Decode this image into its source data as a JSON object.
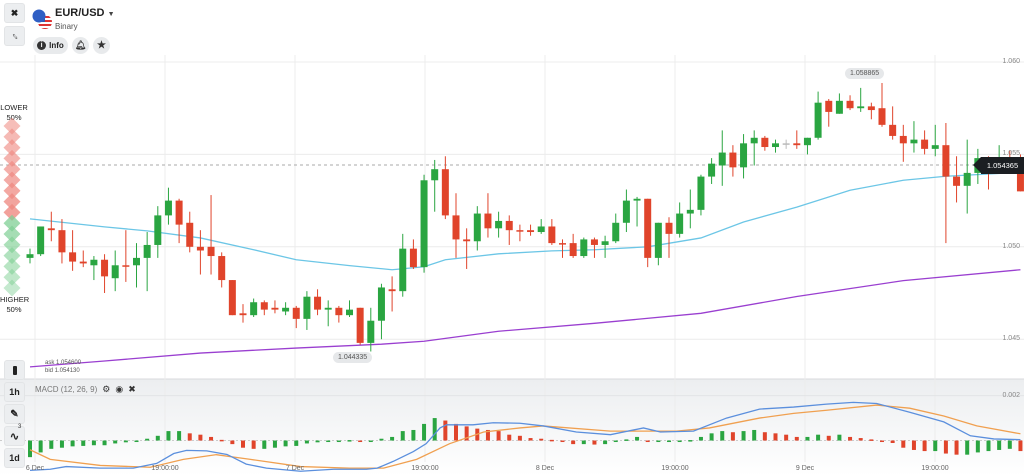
{
  "header": {
    "asset": "EUR/USD",
    "asset_type": "Binary",
    "info_label": "Info",
    "icons": {
      "close": "close-icon",
      "compress": "compress-icon",
      "flag": "us-flag-icon",
      "dropdown": "chevron-down-icon",
      "info": "info-icon",
      "bell": "bell-icon",
      "star": "star-icon"
    }
  },
  "sentiment": {
    "lower_label": "LOWER",
    "lower_pct": "50%",
    "higher_label": "HIGHER",
    "higher_pct": "50%",
    "lower_color": "#ee8880",
    "higher_color": "#7fcf94"
  },
  "toolbar": {
    "timeframe": "1h",
    "period": "1d",
    "indicator_count": "3",
    "icons": [
      "candles-icon",
      "pencil-icon",
      "indicator-icon"
    ]
  },
  "quote": {
    "ask": "ask 1.054600",
    "bid": "bid 1.054130",
    "current_price": "1.054365"
  },
  "annotations": {
    "high_label": "1.058865",
    "low_label": "1.044335"
  },
  "macd_header": {
    "label": "MACD (12, 26, 9)",
    "icons": [
      "gear-icon",
      "eye-icon",
      "close-icon"
    ]
  },
  "colors": {
    "up": "#2aa541",
    "down": "#e0442b",
    "doji": "#bbbbbb",
    "ma_fast": "#6cc6e6",
    "ma_slow": "#9a3fd0",
    "macd": "#5b8fdd",
    "signal": "#f0a050",
    "price_tag": "#1b1e22"
  },
  "chart_data": [
    {
      "type": "candlestick",
      "y_ticks": [
        "1.060",
        "1.055",
        "1.050",
        "1.045"
      ],
      "y_tick_values": [
        1.06,
        1.055,
        1.05,
        1.045
      ],
      "ylim": [
        1.0429,
        1.06038
      ],
      "x_ticks": [
        "6 Dec",
        "19:00:00",
        "7 Dec",
        "19:00:00",
        "8 Dec",
        "19:00:00",
        "9 Dec",
        "19:00:00"
      ],
      "grid": true,
      "candles": [
        [
          1.0494,
          1.0499,
          1.0491,
          1.0496
        ],
        [
          1.0496,
          1.0511,
          1.0495,
          1.0511
        ],
        [
          1.051,
          1.0519,
          1.0503,
          1.0509
        ],
        [
          1.0509,
          1.0515,
          1.0491,
          1.0497
        ],
        [
          1.0497,
          1.0509,
          1.0487,
          1.0492
        ],
        [
          1.0492,
          1.0498,
          1.0489,
          1.0491
        ],
        [
          1.049,
          1.0495,
          1.0482,
          1.0493
        ],
        [
          1.0493,
          1.0496,
          1.0475,
          1.0484
        ],
        [
          1.0483,
          1.0498,
          1.0476,
          1.049
        ],
        [
          1.049,
          1.0509,
          1.0481,
          1.04899
        ],
        [
          1.049,
          1.0502,
          1.0478,
          1.0494
        ],
        [
          1.0494,
          1.0508,
          1.0476,
          1.0501
        ],
        [
          1.0501,
          1.0522,
          1.0494,
          1.0517
        ],
        [
          1.0517,
          1.0532,
          1.0512,
          1.0525
        ],
        [
          1.0525,
          1.0526,
          1.0502,
          1.0512
        ],
        [
          1.0513,
          1.0519,
          1.0497,
          1.05
        ],
        [
          1.05,
          1.0509,
          1.0485,
          1.0498
        ],
        [
          1.05,
          1.0528,
          1.0485,
          1.0495
        ],
        [
          1.0495,
          1.0497,
          1.0478,
          1.0482
        ],
        [
          1.0482,
          1.0482,
          1.0463,
          1.0463
        ],
        [
          1.0464,
          1.0469,
          1.0459,
          1.0463
        ],
        [
          1.0463,
          1.0472,
          1.0462,
          1.047
        ],
        [
          1.047,
          1.0471,
          1.0463,
          1.0466
        ],
        [
          1.0467,
          1.0471,
          1.0464,
          1.0466
        ],
        [
          1.0465,
          1.047,
          1.0463,
          1.0467
        ],
        [
          1.0467,
          1.0468,
          1.0456,
          1.0461
        ],
        [
          1.0461,
          1.0476,
          1.0455,
          1.0473
        ],
        [
          1.0473,
          1.0477,
          1.0463,
          1.0466
        ],
        [
          1.0466,
          1.0471,
          1.0457,
          1.0467
        ],
        [
          1.0467,
          1.0468,
          1.0459,
          1.0463
        ],
        [
          1.0463,
          1.0471,
          1.0462,
          1.0466
        ],
        [
          1.0467,
          1.0467,
          1.0447,
          1.0448
        ],
        [
          1.0448,
          1.0467,
          1.044335,
          1.046
        ],
        [
          1.046,
          1.048,
          1.045,
          1.0478
        ],
        [
          1.0477,
          1.0484,
          1.0465,
          1.0476
        ],
        [
          1.0476,
          1.0507,
          1.0473,
          1.0499
        ],
        [
          1.0499,
          1.0504,
          1.0488,
          1.0489
        ],
        [
          1.0489,
          1.0539,
          1.0486,
          1.0536
        ],
        [
          1.0536,
          1.0547,
          1.0519,
          1.0542
        ],
        [
          1.0542,
          1.0549,
          1.0515,
          1.0517
        ],
        [
          1.0517,
          1.0529,
          1.0494,
          1.0504
        ],
        [
          1.0504,
          1.051,
          1.0488,
          1.0503
        ],
        [
          1.0503,
          1.0522,
          1.0498,
          1.0518
        ],
        [
          1.0518,
          1.0529,
          1.0505,
          1.051
        ],
        [
          1.051,
          1.0519,
          1.0505,
          1.0514
        ],
        [
          1.0514,
          1.0517,
          1.0501,
          1.0509
        ],
        [
          1.0509,
          1.0512,
          1.0503,
          1.05089
        ],
        [
          1.0509,
          1.0512,
          1.0506,
          1.0508
        ],
        [
          1.0508,
          1.0515,
          1.0507,
          1.0511
        ],
        [
          1.0511,
          1.0515,
          1.0501,
          1.0502
        ],
        [
          1.0502,
          1.0504,
          1.0494,
          1.05019
        ],
        [
          1.0502,
          1.0507,
          1.0494,
          1.0495
        ],
        [
          1.0495,
          1.0505,
          1.0494,
          1.0504
        ],
        [
          1.0504,
          1.0505,
          1.0494,
          1.0501
        ],
        [
          1.0501,
          1.0506,
          1.0494,
          1.0503
        ],
        [
          1.0503,
          1.0518,
          1.0502,
          1.0513
        ],
        [
          1.0513,
          1.0531,
          1.0508,
          1.0525
        ],
        [
          1.0525,
          1.0527,
          1.0511,
          1.0526
        ],
        [
          1.0526,
          1.0526,
          1.0489,
          1.0494
        ],
        [
          1.0494,
          1.0513,
          1.049,
          1.0513
        ],
        [
          1.0513,
          1.0516,
          1.0494,
          1.0507
        ],
        [
          1.0507,
          1.0524,
          1.0505,
          1.0518
        ],
        [
          1.0518,
          1.0531,
          1.051,
          1.052
        ],
        [
          1.052,
          1.0539,
          1.0517,
          1.0538
        ],
        [
          1.0538,
          1.0548,
          1.0534,
          1.0545
        ],
        [
          1.0544,
          1.0563,
          1.0533,
          1.0551
        ],
        [
          1.0551,
          1.0555,
          1.0538,
          1.0543
        ],
        [
          1.0543,
          1.0561,
          1.0537,
          1.0556
        ],
        [
          1.0556,
          1.0563,
          1.0544,
          1.0559
        ],
        [
          1.0559,
          1.056,
          1.0552,
          1.0554
        ],
        [
          1.0554,
          1.0558,
          1.0551,
          1.0556
        ],
        [
          1.0556,
          1.0558,
          1.0553,
          1.0556
        ],
        [
          1.0556,
          1.0563,
          1.0553,
          1.0555
        ],
        [
          1.0555,
          1.0559,
          1.055,
          1.0559
        ],
        [
          1.0559,
          1.0584,
          1.0558,
          1.0578
        ],
        [
          1.0579,
          1.058,
          1.0565,
          1.0573
        ],
        [
          1.0572,
          1.0583,
          1.0572,
          1.0579
        ],
        [
          1.0579,
          1.0582,
          1.0574,
          1.0575
        ],
        [
          1.0575,
          1.0586,
          1.0573,
          1.0576
        ],
        [
          1.0576,
          1.0578,
          1.0569,
          1.0574
        ],
        [
          1.0575,
          1.058865,
          1.0565,
          1.0566
        ],
        [
          1.0566,
          1.0576,
          1.0558,
          1.056
        ],
        [
          1.056,
          1.0566,
          1.0546,
          1.0556
        ],
        [
          1.0556,
          1.0568,
          1.0551,
          1.0558
        ],
        [
          1.0558,
          1.0563,
          1.055,
          1.0553
        ],
        [
          1.0553,
          1.0566,
          1.0549,
          1.0555
        ],
        [
          1.0555,
          1.0567,
          1.0502,
          1.0538
        ],
        [
          1.0538,
          1.0549,
          1.0524,
          1.0533
        ],
        [
          1.0533,
          1.0558,
          1.0518,
          1.054
        ],
        [
          1.054,
          1.0553,
          1.0534,
          1.0548
        ],
        [
          1.0548,
          1.0549,
          1.0531,
          1.0546
        ],
        [
          1.0546,
          1.0555,
          1.054,
          1.0548
        ],
        [
          1.0548,
          1.0552,
          1.0541,
          1.0546
        ],
        [
          1.0546,
          1.055,
          1.053,
          1.053
        ]
      ],
      "ma_fast": {
        "x": [
          0,
          7,
          11,
          16,
          21,
          25,
          30,
          34,
          37,
          39,
          44,
          49,
          53,
          58,
          63,
          67,
          72,
          77,
          82,
          86,
          93
        ],
        "y": [
          1.05151,
          1.05108,
          1.05086,
          1.05048,
          1.04984,
          1.0493,
          1.04898,
          1.04876,
          1.04892,
          1.0493,
          1.04962,
          1.04978,
          1.04984,
          1.05,
          1.05048,
          1.05134,
          1.05215,
          1.05306,
          1.0536,
          1.05382,
          1.05403
        ]
      },
      "ma_slow": {
        "x": [
          0,
          7,
          16,
          25,
          33,
          37,
          44,
          53,
          63,
          72,
          82,
          93
        ],
        "y": [
          1.0435,
          1.04382,
          1.04425,
          1.04452,
          1.04473,
          1.04489,
          1.04543,
          1.04586,
          1.0464,
          1.04731,
          1.04817,
          1.04876
        ]
      }
    },
    {
      "type": "macd",
      "params": "12, 26, 9",
      "y_ticks": [
        "0.002"
      ],
      "y_tick_values": [
        0.002
      ],
      "ylim": [
        -0.00158,
        0.00274
      ],
      "histogram": [
        -0.00074,
        -0.00053,
        -0.00037,
        -0.00032,
        -0.00026,
        -0.00024,
        -0.00021,
        -0.00021,
        -0.00013,
        -8e-05,
        -3e-05,
        8e-05,
        0.00021,
        0.00042,
        0.00042,
        0.00032,
        0.00026,
        0.00016,
        3e-05,
        -0.00016,
        -0.00032,
        -0.00037,
        -0.00037,
        -0.00032,
        -0.00026,
        -0.00024,
        -0.00013,
        -8e-05,
        -5e-05,
        -3e-05,
        2e-05,
        -5e-05,
        -2e-05,
        8e-05,
        0.00016,
        0.00042,
        0.00047,
        0.00074,
        0.001,
        0.00089,
        0.00074,
        0.00063,
        0.00053,
        0.00047,
        0.00042,
        0.00026,
        0.00021,
        0.00011,
        8e-05,
        3e-05,
        -5e-05,
        -0.00016,
        -0.00016,
        -0.00018,
        -0.00016,
        -5e-05,
        5e-05,
        0.00016,
        -5e-05,
        -5e-05,
        -5e-05,
        -3e-05,
        2e-05,
        0.00016,
        0.00032,
        0.00042,
        0.00037,
        0.00042,
        0.00047,
        0.00037,
        0.00032,
        0.00026,
        0.00016,
        0.00016,
        0.00026,
        0.00021,
        0.00026,
        0.00016,
        0.00011,
        5e-05,
        -2e-05,
        -0.00011,
        -0.00032,
        -0.00042,
        -0.00047,
        -0.00047,
        -0.00058,
        -0.00063,
        -0.00063,
        -0.00053,
        -0.00047,
        -0.00042,
        -0.00037,
        -0.00047
      ],
      "macd": {
        "x": [
          0,
          1.9,
          3.4,
          6.6,
          9.7,
          11.9,
          13.5,
          14.7,
          16.6,
          18.5,
          20.3,
          22.2,
          25.4,
          28.5,
          31.6,
          32.6,
          34.1,
          36,
          37.2,
          38.5,
          39.1,
          41.6,
          43.5,
          46,
          48.2,
          51.3,
          54.5,
          57.6,
          59.2,
          62.3,
          65.4,
          68.5,
          71.7,
          74.8,
          77.3,
          79.5,
          82.6,
          85.8,
          88.3,
          90.5,
          93
        ],
        "y": [
          -0.00133,
          -0.00128,
          -0.00116,
          -0.00123,
          -0.00123,
          -0.00102,
          -0.00058,
          -0.00044,
          -0.00046,
          -0.00062,
          -0.00105,
          -0.00123,
          -0.00137,
          -0.00128,
          -0.00128,
          -0.00123,
          -0.00093,
          -0.00049,
          -0.00014,
          0.00056,
          0.0007,
          0.0007,
          0.00079,
          0.00077,
          0.00065,
          0.00038,
          0.00026,
          0.00056,
          0.00038,
          0.00042,
          0.001,
          0.0014,
          0.00149,
          0.00162,
          0.0017,
          0.00165,
          0.00126,
          0.00083,
          0.00021,
          7e-05,
          4e-05
        ]
      },
      "signal": {
        "x": [
          0,
          1.9,
          6.6,
          11.3,
          14.4,
          17.5,
          20.7,
          25.4,
          30,
          33.2,
          36.3,
          39.4,
          42.6,
          46,
          48.2,
          54.5,
          60.7,
          63.8,
          68.5,
          71.7,
          74.8,
          79.5,
          82.6,
          85.8,
          88.9,
          93
        ],
        "y": [
          -0.00041,
          -0.00084,
          -0.00111,
          -0.00119,
          -0.00084,
          -0.00063,
          -0.00084,
          -0.00116,
          -0.00123,
          -0.00123,
          -0.00084,
          -0.00014,
          0.00038,
          0.00056,
          0.00065,
          0.00042,
          0.00042,
          0.00056,
          0.001,
          0.00121,
          0.00135,
          0.00158,
          0.00144,
          0.00109,
          0.00065,
          0.0003
        ]
      }
    }
  ]
}
